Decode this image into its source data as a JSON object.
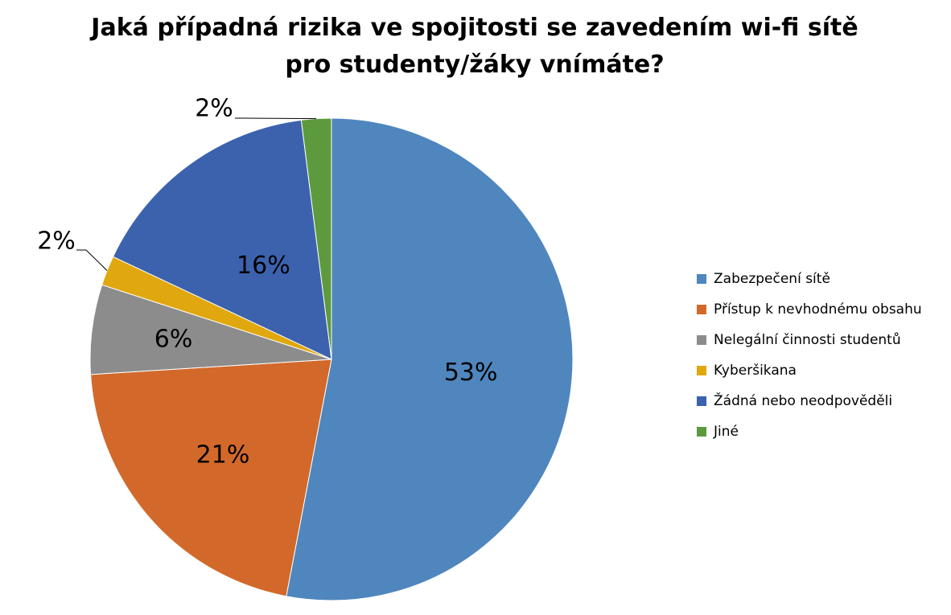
{
  "chart_data": {
    "type": "pie",
    "title": "Jaká případná rizika ve spojitosti se zavedením wi-fi sítě pro studenty/žáky vnímáte?",
    "title_lines": [
      "Jaká případná rizika ve spojitosti se zavedením wi-fi sítě",
      "pro studenty/žáky vnímáte?"
    ],
    "categories": [
      "Zabezpečení sítě",
      "Přístup k nevhodnému obsahu",
      "Nelegální činnosti studentů",
      "Kyberšikana",
      "Žádná nebo neodpověděli",
      "Jiné"
    ],
    "values": [
      53,
      21,
      6,
      2,
      16,
      2
    ],
    "labels": [
      "53%",
      "21%",
      "6%",
      "2%",
      "16%",
      "2%"
    ],
    "colors": [
      "#4F86BE",
      "#D2692A",
      "#8C8C8C",
      "#E0A80E",
      "#3C62AE",
      "#5D9A3E"
    ],
    "start_angle": "12 o'clock",
    "direction": "clockwise",
    "legend_position": "right"
  }
}
